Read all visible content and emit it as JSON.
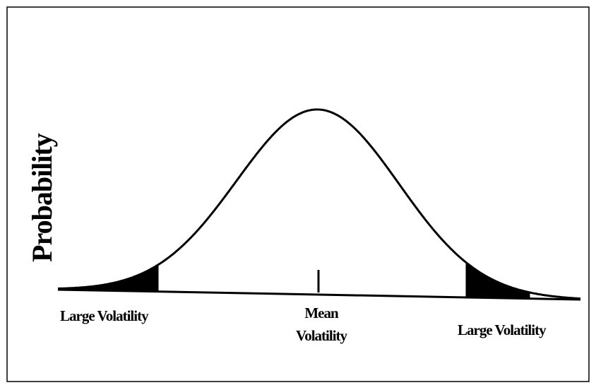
{
  "y_label": "Probability",
  "labels": {
    "left": "Large Volatility",
    "mean": [
      "Mean",
      "Volatility"
    ],
    "right": "Large Volatility"
  }
}
